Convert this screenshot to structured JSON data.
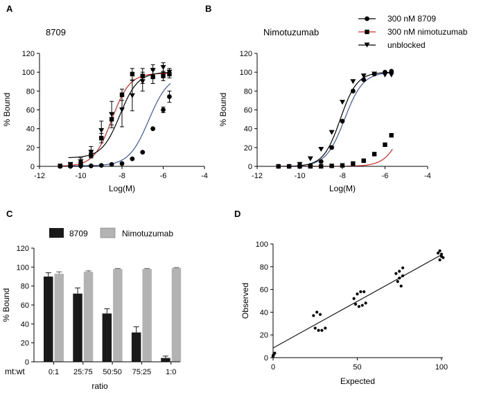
{
  "panel_letters": {
    "A": "A",
    "B": "B",
    "C": "C",
    "D": "D"
  },
  "chart_data": [
    {
      "panel": "A",
      "type": "scatter",
      "title": "8709",
      "xlabel": "Log(M)",
      "ylabel": "% Bound",
      "xlim": [
        -12,
        -4
      ],
      "ylim": [
        0,
        120
      ],
      "xticks": [
        -12,
        -10,
        -8,
        -6,
        -4
      ],
      "yticks": [
        0,
        20,
        40,
        60,
        80,
        100,
        120
      ],
      "series": [
        {
          "name": "300 nM 8709",
          "marker": "circle",
          "fit_color": "#3a56a5",
          "fit": {
            "bottom": 0.5,
            "top": 98,
            "logEC50": -6.7,
            "hill": 0.9
          },
          "x": [
            -11.0,
            -10.5,
            -10.0,
            -9.5,
            -9.0,
            -8.5,
            -8.0,
            -7.5,
            -7.0,
            -6.5,
            -6.0,
            -5.7
          ],
          "y": [
            0,
            0,
            0.5,
            0.5,
            1,
            2,
            3,
            8,
            15,
            40,
            60,
            74
          ],
          "err": [
            0,
            0,
            0,
            0,
            0,
            0,
            0,
            0,
            0,
            0,
            3,
            6
          ]
        },
        {
          "name": "300 nM nimotuzumab",
          "marker": "square",
          "fit_color": "#d7261e",
          "fit": {
            "bottom": 0,
            "top": 99,
            "logEC50": -8.5,
            "hill": 1.0
          },
          "x": [
            -11.0,
            -10.5,
            -10.0,
            -9.5,
            -9.0,
            -8.5,
            -8.0,
            -7.5,
            -7.0,
            -6.5,
            -6.0,
            -5.7
          ],
          "y": [
            0.5,
            1,
            3,
            12,
            30,
            50,
            76,
            98,
            96,
            95,
            96,
            98
          ],
          "err": [
            0,
            1,
            2,
            3,
            5,
            6,
            6,
            6,
            8,
            7,
            5,
            4
          ]
        },
        {
          "name": "unblocked",
          "marker": "triangle-down",
          "fit_color": "#000000",
          "fit": {
            "bottom": 9,
            "top": 100,
            "logEC50": -8.1,
            "hill": 1.0
          },
          "x": [
            -10.5,
            -10.0,
            -9.5,
            -9.0,
            -8.5,
            -8.0,
            -7.5,
            -7.0,
            -6.5,
            -6.0,
            -5.7
          ],
          "y": [
            2,
            5,
            15,
            38,
            55,
            60,
            75,
            90,
            102,
            105,
            100
          ],
          "err": [
            2,
            4,
            6,
            10,
            14,
            18,
            16,
            10,
            6,
            5,
            4
          ]
        }
      ]
    },
    {
      "panel": "B",
      "type": "scatter",
      "title": "Nimotuzumab",
      "xlabel": "Log(M)",
      "ylabel": "% Bound",
      "xlim": [
        -12,
        -4
      ],
      "ylim": [
        0,
        120
      ],
      "xticks": [
        -12,
        -10,
        -8,
        -6,
        -4
      ],
      "yticks": [
        0,
        20,
        40,
        60,
        80,
        100,
        120
      ],
      "legend_position": "top-right",
      "series": [
        {
          "name": "300 nM 8709",
          "marker": "circle",
          "fit_color": "#3a56a5",
          "fit": {
            "bottom": 0,
            "top": 100,
            "logEC50": -7.9,
            "hill": 1.0
          },
          "x": [
            -11.0,
            -10.5,
            -10.0,
            -9.5,
            -9.0,
            -8.5,
            -8.0,
            -7.5,
            -7.0,
            -6.5,
            -6.0,
            -5.7
          ],
          "y": [
            0,
            0,
            0.5,
            1,
            5,
            20,
            48,
            80,
            92,
            98,
            100,
            101
          ]
        },
        {
          "name": "300 nM nimotuzumab",
          "marker": "square",
          "fit_color": "#d7261e",
          "fit": {
            "bottom": 0,
            "top": 100,
            "logEC50": -5.0,
            "hill": 1.0
          },
          "x": [
            -11.0,
            -10.5,
            -10.0,
            -9.5,
            -9.0,
            -8.5,
            -8.0,
            -7.5,
            -7.0,
            -6.5,
            -6.0,
            -5.7
          ],
          "y": [
            0,
            0,
            0,
            0,
            0,
            0.5,
            1,
            3,
            6,
            13,
            23,
            33
          ]
        },
        {
          "name": "unblocked",
          "marker": "triangle-down",
          "fit_color": "#000000",
          "fit": {
            "bottom": 0,
            "top": 100,
            "logEC50": -8.1,
            "hill": 1.1
          },
          "x": [
            -10.0,
            -9.5,
            -9.0,
            -8.5,
            -8.0,
            -7.5,
            -7.0,
            -6.5,
            -6.0,
            -5.7
          ],
          "y": [
            2,
            8,
            18,
            36,
            68,
            90,
            96,
            98,
            97,
            97
          ]
        }
      ]
    },
    {
      "panel": "C",
      "type": "bar",
      "xlabel": "ratio",
      "ylabel": "% Bound",
      "category_header": "mt:wt",
      "categories": [
        "0:1",
        "25:75",
        "50:50",
        "75:25",
        "1:0"
      ],
      "ylim": [
        0,
        120
      ],
      "yticks": [
        0,
        20,
        40,
        60,
        80,
        100,
        120
      ],
      "series": [
        {
          "name": "8709",
          "color": "#1a1a1a",
          "values": [
            90,
            72,
            51,
            31,
            4
          ],
          "err": [
            4,
            6,
            5,
            6,
            2
          ]
        },
        {
          "name": "Nimotuzumab",
          "color": "#b3b3b3",
          "values": [
            93,
            95,
            98,
            98,
            99
          ],
          "err": [
            2,
            1,
            0.5,
            0.5,
            0.5
          ]
        }
      ]
    },
    {
      "panel": "D",
      "type": "scatter",
      "xlabel": "Expected",
      "ylabel": "Observed",
      "xlim": [
        0,
        100
      ],
      "ylim": [
        0,
        100
      ],
      "xticks": [
        0,
        50,
        100
      ],
      "yticks": [
        0,
        20,
        40,
        60,
        80,
        100
      ],
      "regression": {
        "slope": 0.82,
        "intercept": 8.5
      },
      "points": [
        [
          0,
          1
        ],
        [
          0,
          2
        ],
        [
          1,
          4
        ],
        [
          0.5,
          3
        ],
        [
          24,
          37
        ],
        [
          26,
          40
        ],
        [
          28,
          38
        ],
        [
          25,
          26
        ],
        [
          27,
          24
        ],
        [
          29,
          24
        ],
        [
          31,
          26
        ],
        [
          48,
          52
        ],
        [
          50,
          56
        ],
        [
          52,
          58
        ],
        [
          54,
          58
        ],
        [
          49,
          47
        ],
        [
          51,
          45
        ],
        [
          53,
          46
        ],
        [
          55,
          48
        ],
        [
          73,
          74
        ],
        [
          75,
          76
        ],
        [
          77,
          79
        ],
        [
          74,
          67
        ],
        [
          76,
          63
        ],
        [
          75,
          70
        ],
        [
          77,
          72
        ],
        [
          98,
          92
        ],
        [
          99,
          94
        ],
        [
          100,
          91
        ],
        [
          101,
          88
        ],
        [
          99,
          86
        ],
        [
          100,
          89
        ]
      ]
    }
  ]
}
